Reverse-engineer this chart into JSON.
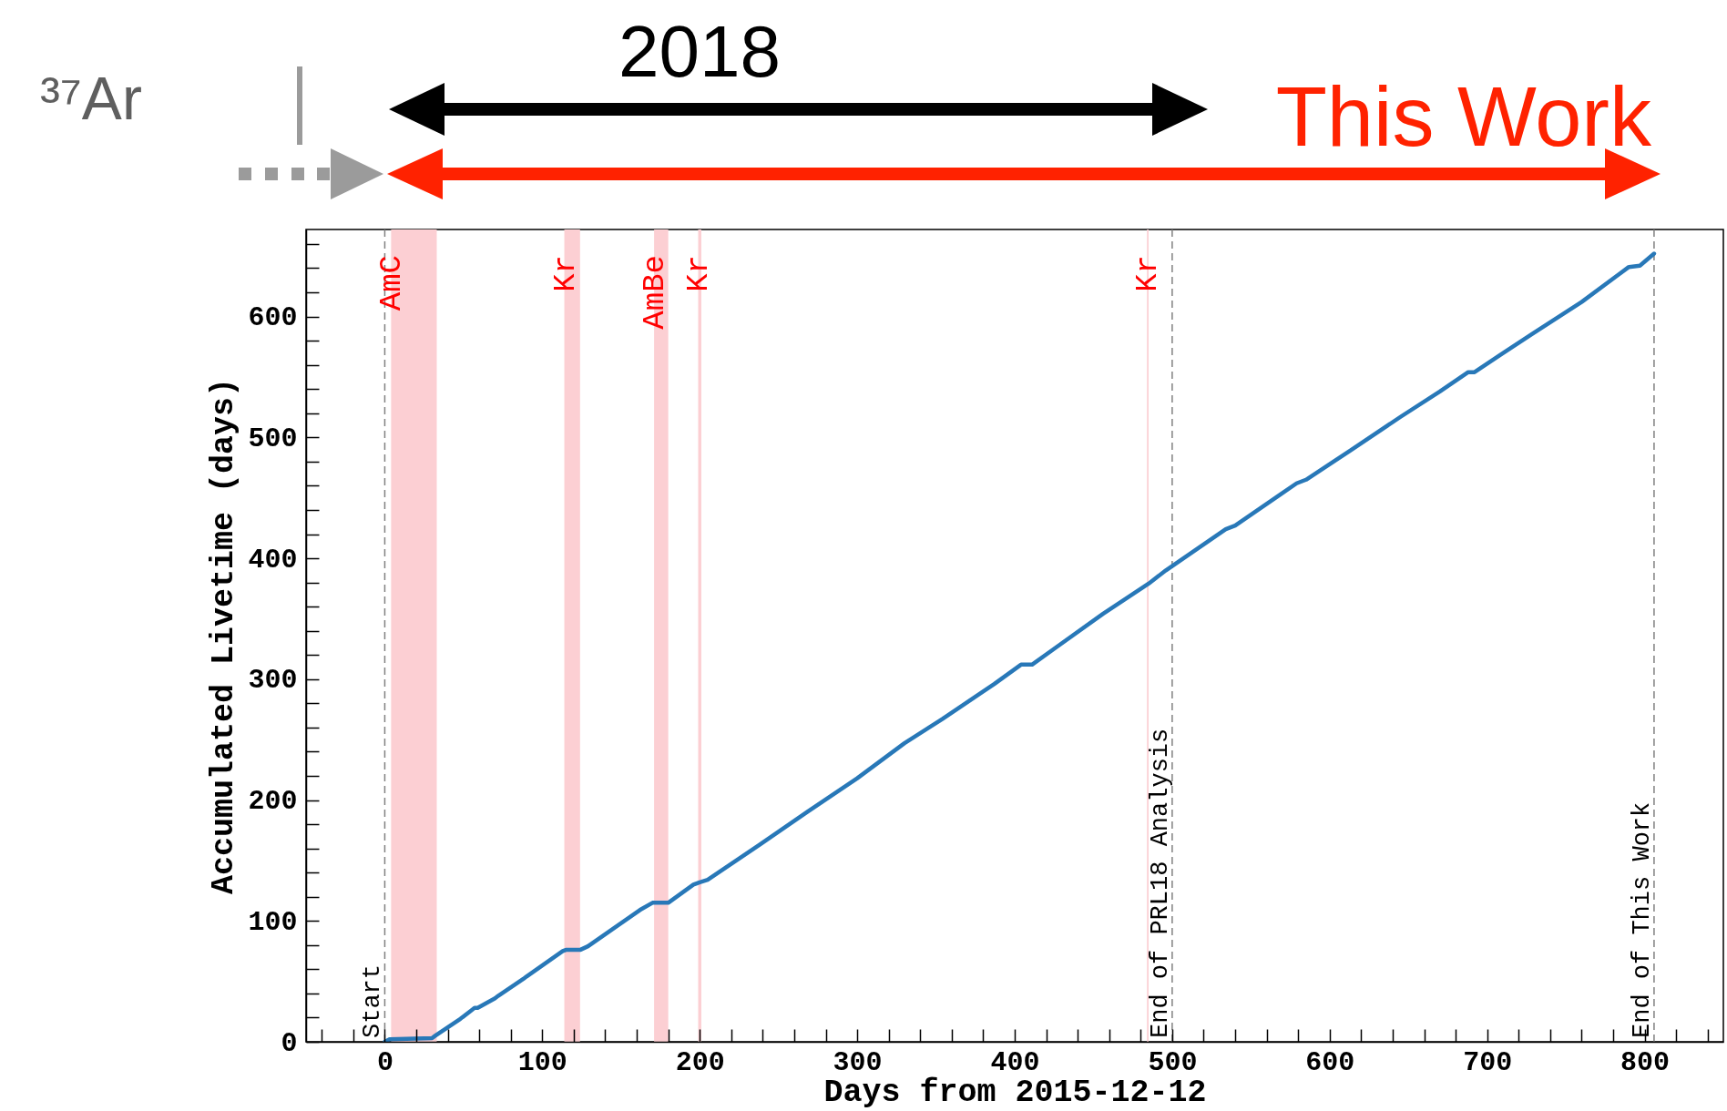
{
  "chart_data": {
    "type": "line",
    "xlabel": "Days from 2015-12-12",
    "ylabel": "Accumulated Livetime (days)",
    "x": [
      0,
      3,
      30,
      32,
      40,
      48,
      55,
      57,
      59,
      70,
      72,
      88,
      90,
      113,
      115,
      124,
      129,
      140,
      162,
      170,
      180,
      196,
      200,
      205,
      238,
      268,
      300,
      330,
      354,
      387,
      404,
      411,
      426,
      456,
      485,
      496,
      534,
      540,
      569,
      579,
      585,
      613,
      645,
      670,
      688,
      692,
      708,
      728,
      760,
      790,
      797,
      806
    ],
    "series": [
      {
        "color": "#2878b8",
        "values": [
          0,
          2,
          3,
          5,
          12,
          19,
          26,
          28,
          28,
          36,
          38,
          52,
          54,
          75,
          76,
          76,
          79,
          89,
          109,
          115,
          115,
          130,
          132,
          134,
          163,
          190,
          218,
          247,
          267,
          296,
          312,
          312,
          326,
          354,
          379,
          390,
          424,
          427,
          453,
          462,
          465,
          489,
          517,
          538,
          554,
          554,
          568,
          585,
          612,
          641,
          642,
          652
        ]
      }
    ],
    "xlim": [
      -50,
      850
    ],
    "ylim": [
      0,
      672
    ],
    "xticks": [
      {
        "value": -40,
        "label": null
      },
      {
        "value": -20,
        "label": null
      },
      0,
      {
        "value": 20,
        "label": null
      },
      {
        "value": 40,
        "label": null
      },
      {
        "value": 60,
        "label": null
      },
      {
        "value": 80,
        "label": null
      },
      100,
      {
        "value": 120,
        "label": null
      },
      {
        "value": 140,
        "label": null
      },
      {
        "value": 160,
        "label": null
      },
      {
        "value": 180,
        "label": null
      },
      200,
      {
        "value": 220,
        "label": null
      },
      {
        "value": 240,
        "label": null
      },
      {
        "value": 260,
        "label": null
      },
      {
        "value": 280,
        "label": null
      },
      300,
      {
        "value": 320,
        "label": null
      },
      {
        "value": 340,
        "label": null
      },
      {
        "value": 360,
        "label": null
      },
      {
        "value": 380,
        "label": null
      },
      400,
      {
        "value": 420,
        "label": null
      },
      {
        "value": 440,
        "label": null
      },
      {
        "value": 460,
        "label": null
      },
      {
        "value": 480,
        "label": null
      },
      500,
      {
        "value": 520,
        "label": null
      },
      {
        "value": 540,
        "label": null
      },
      {
        "value": 560,
        "label": null
      },
      {
        "value": 580,
        "label": null
      },
      600,
      {
        "value": 620,
        "label": null
      },
      {
        "value": 640,
        "label": null
      },
      {
        "value": 660,
        "label": null
      },
      {
        "value": 680,
        "label": null
      },
      700,
      {
        "value": 720,
        "label": null
      },
      {
        "value": 740,
        "label": null
      },
      {
        "value": 760,
        "label": null
      },
      {
        "value": 780,
        "label": null
      },
      800,
      {
        "value": 820,
        "label": null
      },
      {
        "value": 840,
        "label": null
      }
    ],
    "yticks": [
      0,
      {
        "value": 20,
        "label": null
      },
      {
        "value": 40,
        "label": null
      },
      {
        "value": 60,
        "label": null
      },
      {
        "value": 80,
        "label": null
      },
      100,
      {
        "value": 120,
        "label": null
      },
      {
        "value": 140,
        "label": null
      },
      {
        "value": 160,
        "label": null
      },
      {
        "value": 180,
        "label": null
      },
      200,
      {
        "value": 220,
        "label": null
      },
      {
        "value": 240,
        "label": null
      },
      {
        "value": 260,
        "label": null
      },
      {
        "value": 280,
        "label": null
      },
      300,
      {
        "value": 320,
        "label": null
      },
      {
        "value": 340,
        "label": null
      },
      {
        "value": 360,
        "label": null
      },
      {
        "value": 380,
        "label": null
      },
      400,
      {
        "value": 420,
        "label": null
      },
      {
        "value": 440,
        "label": null
      },
      {
        "value": 460,
        "label": null
      },
      {
        "value": 480,
        "label": null
      },
      500,
      {
        "value": 520,
        "label": null
      },
      {
        "value": 540,
        "label": null
      },
      {
        "value": 560,
        "label": null
      },
      {
        "value": 580,
        "label": null
      },
      600,
      {
        "value": 620,
        "label": null
      },
      {
        "value": 640,
        "label": null
      },
      {
        "value": 660,
        "label": null
      }
    ],
    "bands": [
      {
        "axis": "x",
        "from": 4,
        "to": 33,
        "label": "AmC",
        "color": "#fccfd3"
      },
      {
        "axis": "x",
        "from": 114,
        "to": 124,
        "label": "Kr",
        "color": "#fccfd3"
      },
      {
        "axis": "x",
        "from": 171,
        "to": 180,
        "label": "AmBe",
        "color": "#fccfd3"
      },
      {
        "axis": "x",
        "from": 199,
        "to": 201,
        "label": "Kr",
        "color": "#fccfd3"
      },
      {
        "axis": "x",
        "from": 484,
        "to": 485,
        "label": "Kr",
        "color": "#fccfd3"
      }
    ],
    "ref_lines": [
      {
        "axis": "x",
        "value": 0,
        "label": "Start",
        "color": "#808080",
        "line_style": "dashed"
      },
      {
        "axis": "x",
        "value": 500,
        "label": "End of PRL18 Analysis",
        "color": "#808080",
        "line_style": "dashed"
      },
      {
        "axis": "x",
        "value": 806,
        "label": "End of This Work",
        "color": "#808080",
        "line_style": "dashed"
      }
    ],
    "annotations": [
      "³⁷Ar",
      "2018",
      "This Work"
    ]
  }
}
